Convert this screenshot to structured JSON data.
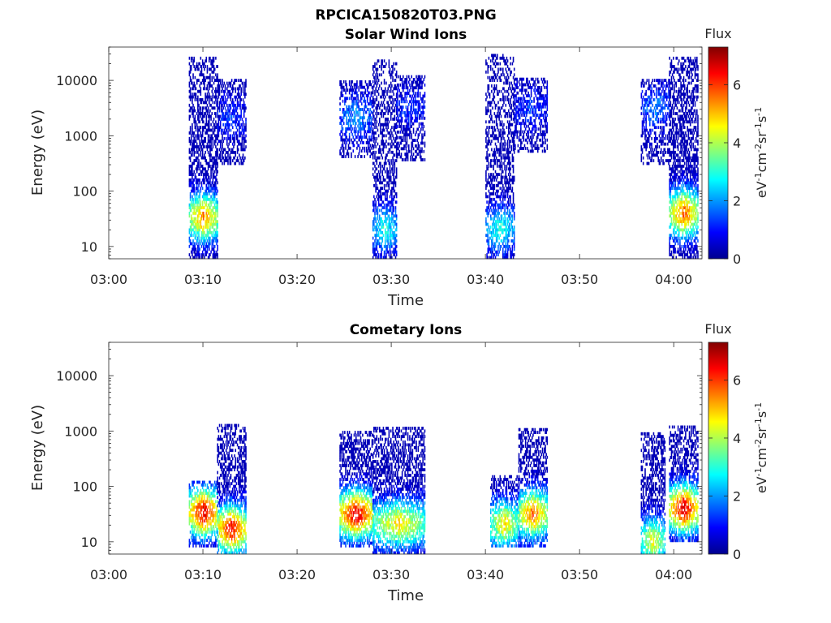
{
  "figure": {
    "suptitle": "RPCICA150820T03.PNG"
  },
  "chart_data": [
    {
      "type": "heatmap",
      "title": "Solar Wind Ions",
      "xlabel": "Time",
      "ylabel": "Energy (eV)",
      "xlim": [
        "03:00",
        "04:03"
      ],
      "ylim": [
        6,
        40000
      ],
      "yscale": "log",
      "xticks": [
        "03:00",
        "03:10",
        "03:20",
        "03:30",
        "03:40",
        "03:50",
        "04:00"
      ],
      "yticks": [
        "10",
        "100",
        "1000",
        "10000"
      ],
      "colorbar": {
        "label": "Flux",
        "units": "eV-1cm-2sr-1s-1",
        "range": [
          0,
          7.3
        ],
        "ticks": [
          "0",
          "2",
          "4",
          "6"
        ]
      },
      "colormap": "jet",
      "bursts": [
        {
          "start": "03:08.5",
          "end": "03:11.5",
          "e_min": 6,
          "e_max": 25000,
          "peak_energy": 32,
          "peak_flux": 5.5
        },
        {
          "start": "03:11.5",
          "end": "03:14.5",
          "e_min": 300,
          "e_max": 10000,
          "peak_energy": 2000,
          "peak_flux": 1.3
        },
        {
          "start": "03:24.5",
          "end": "03:28.0",
          "e_min": 400,
          "e_max": 9000,
          "peak_energy": 2000,
          "peak_flux": 2.0
        },
        {
          "start": "03:28.0",
          "end": "03:30.5",
          "e_min": 6,
          "e_max": 22000,
          "peak_energy": 20,
          "peak_flux": 3.0
        },
        {
          "start": "03:30.5",
          "end": "03:33.5",
          "e_min": 350,
          "e_max": 12000,
          "peak_energy": 3000,
          "peak_flux": 1.3
        },
        {
          "start": "03:40.0",
          "end": "03:43.0",
          "e_min": 6,
          "e_max": 30000,
          "peak_energy": 20,
          "peak_flux": 3.0
        },
        {
          "start": "03:43.0",
          "end": "03:46.5",
          "e_min": 500,
          "e_max": 10000,
          "peak_energy": 3000,
          "peak_flux": 1.3
        },
        {
          "start": "03:56.5",
          "end": "03:59.5",
          "e_min": 300,
          "e_max": 10000,
          "peak_energy": 3000,
          "peak_flux": 1.8
        },
        {
          "start": "03:59.5",
          "end": "04:02.5",
          "e_min": 6,
          "e_max": 25000,
          "peak_energy": 38,
          "peak_flux": 5.8
        }
      ]
    },
    {
      "type": "heatmap",
      "title": "Cometary Ions",
      "xlabel": "Time",
      "ylabel": "Energy (eV)",
      "xlim": [
        "03:00",
        "04:03"
      ],
      "ylim": [
        6,
        40000
      ],
      "yscale": "log",
      "xticks": [
        "03:00",
        "03:10",
        "03:20",
        "03:30",
        "03:40",
        "03:50",
        "04:00"
      ],
      "yticks": [
        "10",
        "100",
        "1000",
        "10000"
      ],
      "colorbar": {
        "label": "Flux",
        "units": "eV-1cm-2sr-1s-1",
        "range": [
          0,
          7.3
        ],
        "ticks": [
          "0",
          "2",
          "4",
          "6"
        ]
      },
      "colormap": "jet",
      "bursts": [
        {
          "start": "03:08.5",
          "end": "03:11.5",
          "e_min": 8,
          "e_max": 120,
          "peak_energy": 32,
          "peak_flux": 6.8
        },
        {
          "start": "03:11.5",
          "end": "03:14.5",
          "e_min": 6,
          "e_max": 1200,
          "peak_energy": 16,
          "peak_flux": 6.5
        },
        {
          "start": "03:24.5",
          "end": "03:28.0",
          "e_min": 8,
          "e_max": 1000,
          "peak_energy": 30,
          "peak_flux": 6.8
        },
        {
          "start": "03:28.0",
          "end": "03:33.5",
          "e_min": 6,
          "e_max": 1100,
          "peak_energy": 20,
          "peak_flux": 4.8
        },
        {
          "start": "03:40.5",
          "end": "03:43.5",
          "e_min": 8,
          "e_max": 150,
          "peak_energy": 20,
          "peak_flux": 4.8
        },
        {
          "start": "03:43.5",
          "end": "03:46.5",
          "e_min": 8,
          "e_max": 1100,
          "peak_energy": 30,
          "peak_flux": 5.8
        },
        {
          "start": "03:56.5",
          "end": "03:59.0",
          "e_min": 6,
          "e_max": 900,
          "peak_energy": 10,
          "peak_flux": 4.5
        },
        {
          "start": "03:59.5",
          "end": "04:02.5",
          "e_min": 10,
          "e_max": 1200,
          "peak_energy": 38,
          "peak_flux": 6.8
        }
      ]
    }
  ]
}
